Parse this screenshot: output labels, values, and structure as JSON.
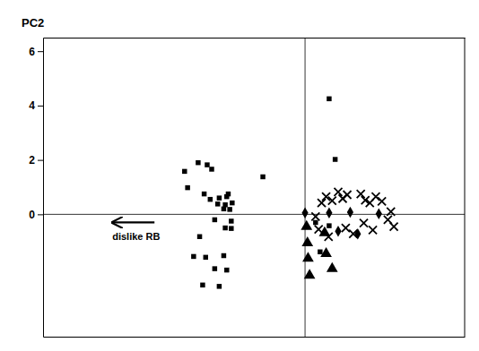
{
  "chart_data": {
    "type": "scatter",
    "y_label": "PC2",
    "xlim": [
      -5.5,
      8.5
    ],
    "ylim": [
      -4.5,
      6.5
    ],
    "xticks": [],
    "yticks": [
      0,
      2,
      4,
      6
    ],
    "tick_labels": "y",
    "grid": false,
    "hline_y": 0,
    "vline_x": 3.2,
    "arrow": {
      "tail_x": -1.8,
      "head_x": -3.2,
      "y": -0.3
    },
    "annotations": [
      {
        "text": "dislike RB",
        "x": -3.2,
        "y": -0.65
      }
    ],
    "series": [
      {
        "marker": "square",
        "color": "#000000",
        "x": [
          -0.8,
          -0.35,
          -0.05,
          0.1,
          -0.7,
          -0.15,
          0.05,
          0.35,
          0.6,
          0.3,
          0.55,
          0.78,
          0.5,
          0.7,
          0.65,
          1.8,
          0.2,
          0.75,
          0.55,
          0.75,
          -0.3,
          -0.5,
          -0.1,
          0.5,
          0.2,
          0.6,
          -0.2,
          0.35,
          4.0,
          4.2,
          3.55,
          4.0,
          3.7
        ],
        "values": [
          1.58,
          1.9,
          1.82,
          1.66,
          0.98,
          0.75,
          0.55,
          0.6,
          0.65,
          0.38,
          0.35,
          0.42,
          0.2,
          0.18,
          0.75,
          1.38,
          -0.2,
          -0.25,
          -0.5,
          -0.52,
          -0.82,
          -1.55,
          -1.58,
          -1.52,
          -2.0,
          -2.05,
          -2.6,
          -2.65,
          4.25,
          2.02,
          -0.3,
          -0.42,
          -1.38
        ]
      },
      {
        "marker": "triangle",
        "color": "#000000",
        "x": [
          3.25,
          3.28,
          3.3,
          3.35,
          3.85,
          3.9,
          4.1
        ],
        "values": [
          -0.45,
          -1.05,
          -1.62,
          -2.25,
          -0.68,
          -1.45,
          -2.0
        ]
      },
      {
        "marker": "diamond",
        "color": "#000000",
        "x": [
          3.2,
          4.0,
          4.7,
          4.3,
          4.95,
          5.65
        ],
        "values": [
          0.05,
          0.05,
          0.08,
          -0.62,
          -0.72,
          0.02
        ]
      },
      {
        "marker": "x",
        "color": "#000000",
        "x": [
          3.55,
          3.75,
          3.9,
          4.1,
          4.3,
          4.45,
          4.6,
          5.05,
          5.2,
          5.35,
          5.55,
          5.75,
          3.65,
          3.98,
          4.55,
          4.8,
          5.15,
          5.45,
          5.95,
          6.05,
          6.15
        ],
        "values": [
          -0.08,
          0.42,
          0.65,
          0.5,
          0.82,
          0.58,
          0.72,
          0.75,
          0.52,
          0.42,
          0.65,
          0.48,
          -0.55,
          -0.82,
          -0.5,
          -0.72,
          -0.32,
          -0.58,
          -0.2,
          0.1,
          -0.45
        ]
      }
    ]
  }
}
